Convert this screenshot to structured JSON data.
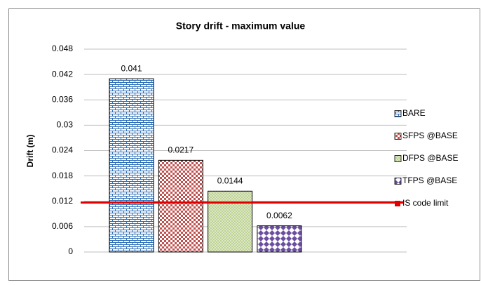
{
  "chart_data": {
    "type": "bar",
    "title": "Story drift - maximum value",
    "y_label": "Drift (m)",
    "series": [
      {
        "name": "BARE",
        "color": "#2e6db4",
        "pattern": "brick",
        "values": [
          0.041
        ]
      },
      {
        "name": "SFPS @BASE",
        "color": "#c0504d",
        "pattern": "checker",
        "values": [
          0.0217
        ]
      },
      {
        "name": "DFPS @BASE",
        "color": "#9bbb59",
        "pattern": "dots",
        "values": [
          0.0144
        ]
      },
      {
        "name": "TFPS @BASE",
        "color": "#6a4fa0",
        "pattern": "diamond",
        "values": [
          0.0062
        ]
      }
    ],
    "reference_lines": [
      {
        "name": "IS code limit",
        "value": 0.0117,
        "color": "#e00000"
      }
    ],
    "ylim": [
      0,
      0.048
    ],
    "yticks": [
      0,
      0.006,
      0.012,
      0.018,
      0.024,
      0.03,
      0.036,
      0.042,
      0.048
    ],
    "grid": true,
    "legend": "right"
  }
}
